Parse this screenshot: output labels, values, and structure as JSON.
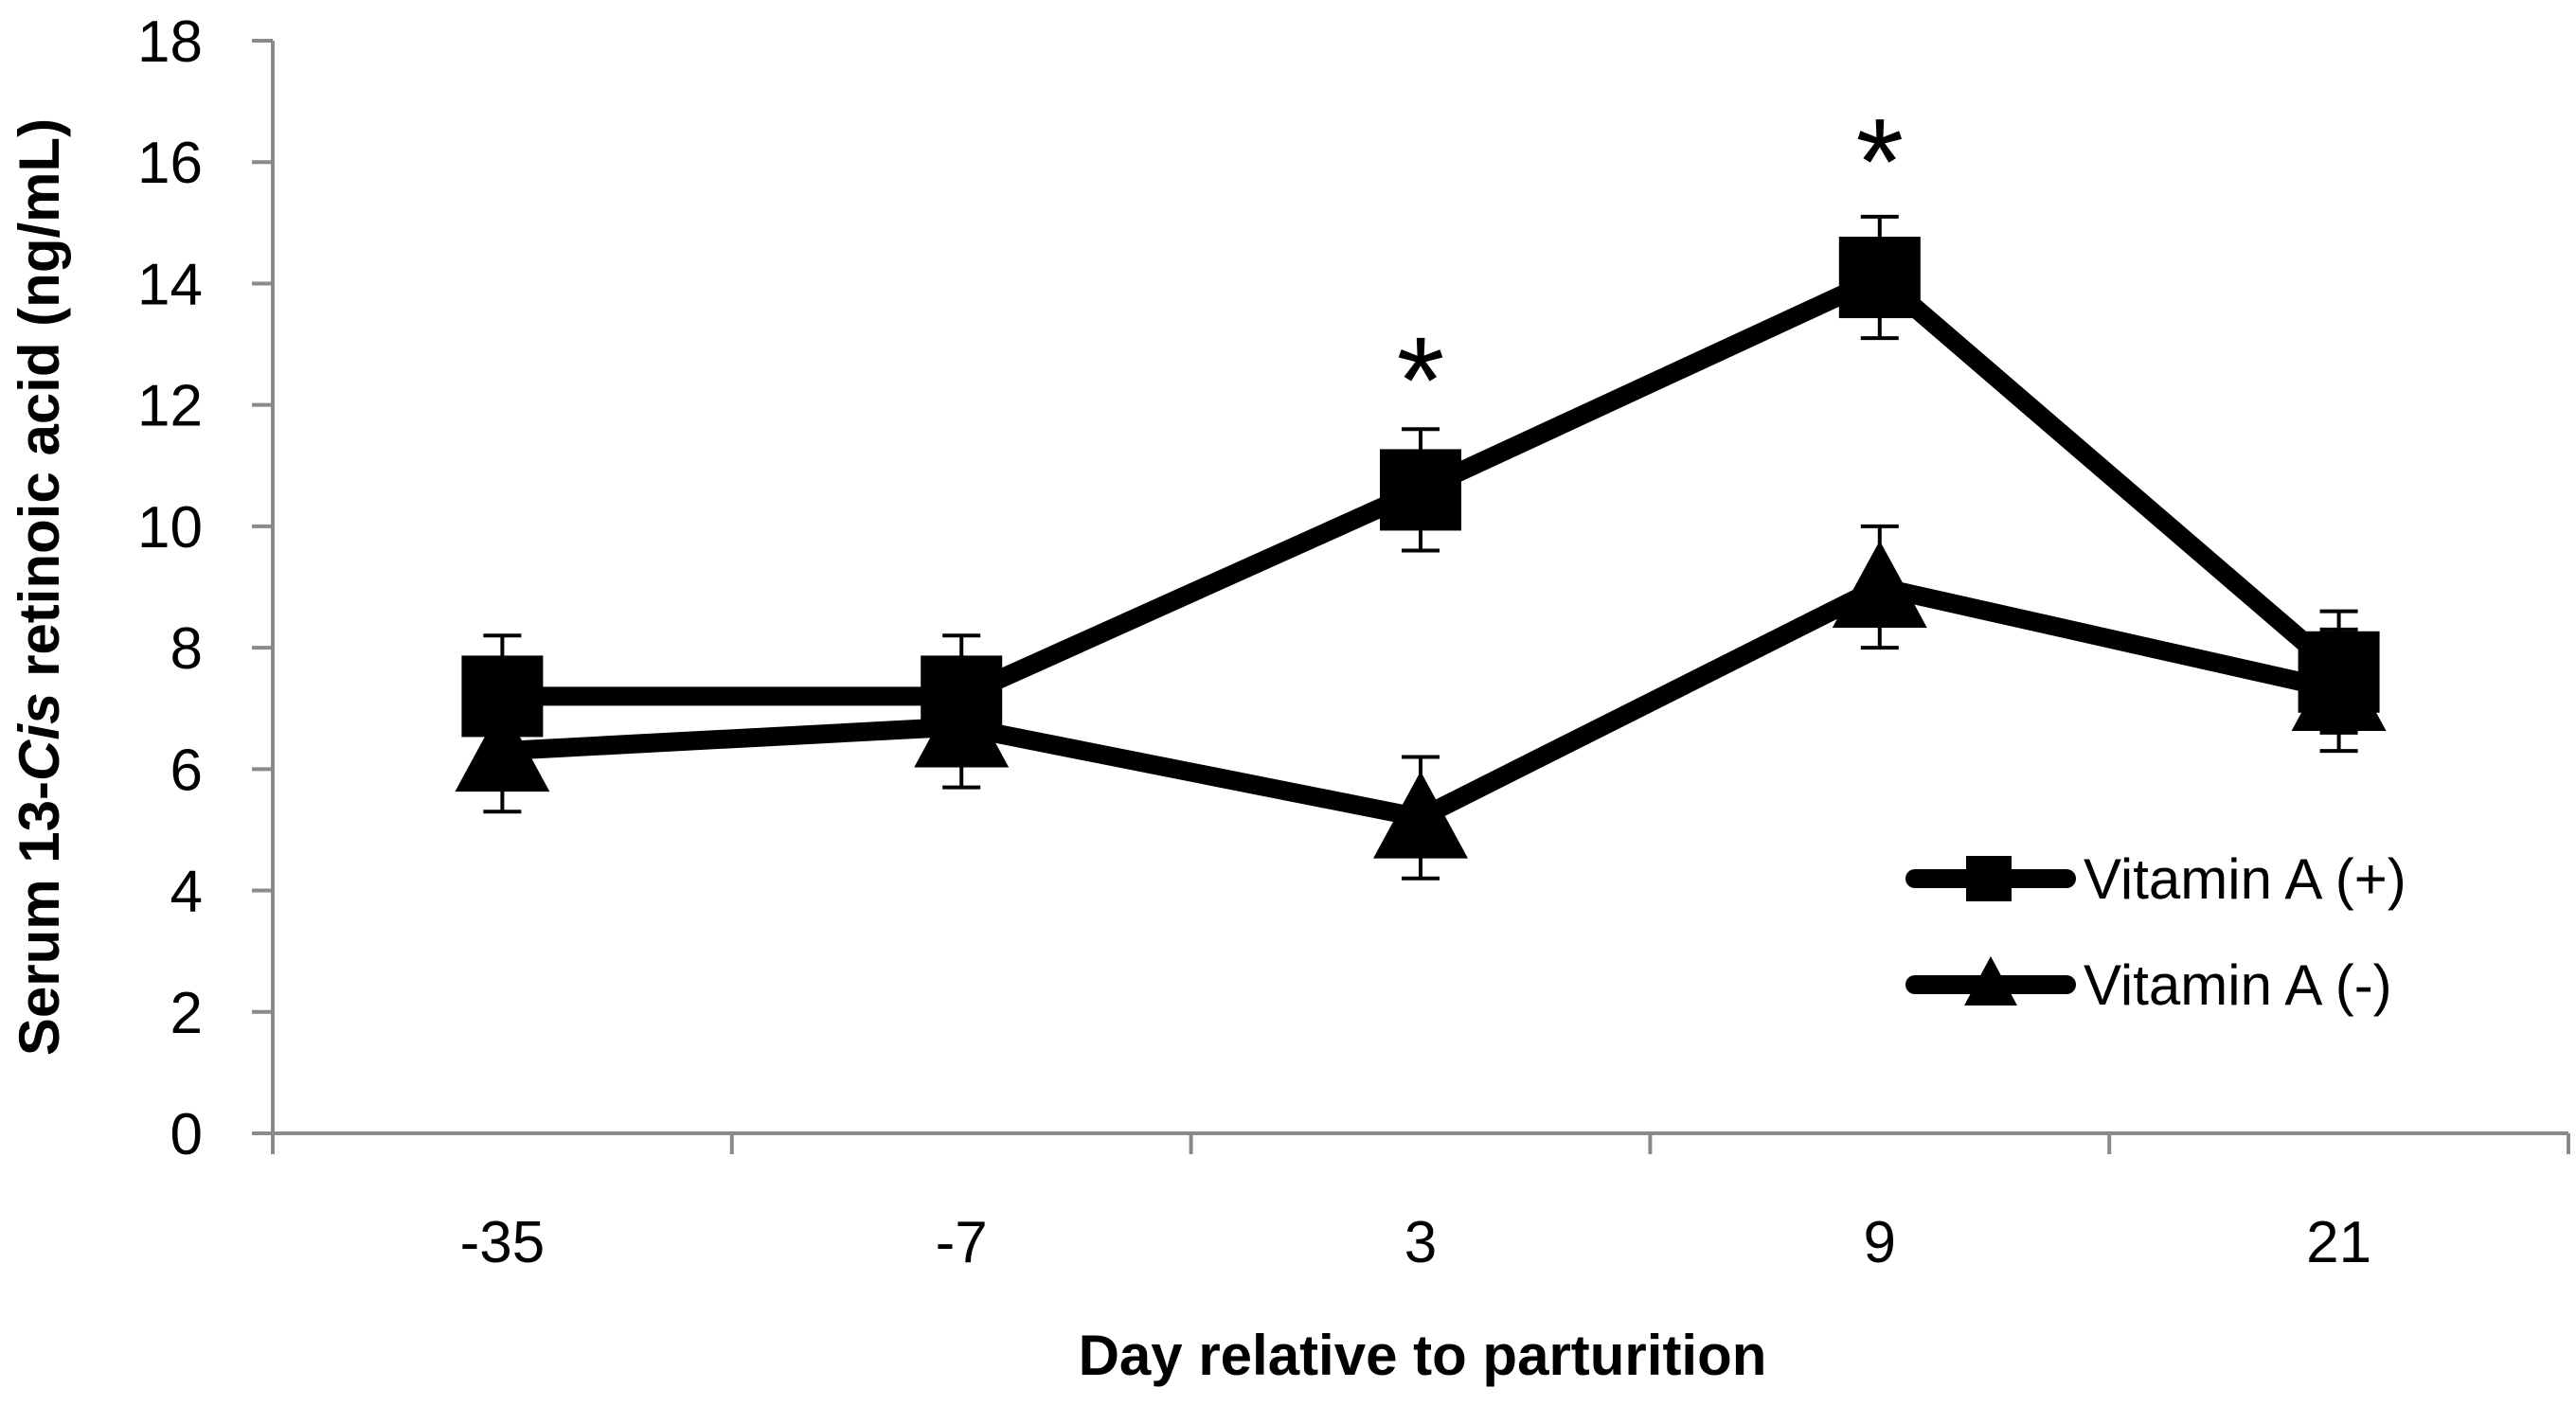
{
  "chart_data": {
    "type": "line",
    "categories": [
      "-35",
      "-7",
      "3",
      "9",
      "21"
    ],
    "xlabel": "Day relative to parturition",
    "ylabel": {
      "prefix": "Serum  13-",
      "italic": "Cis",
      "suffix": " retinoic acid (ng/mL)"
    },
    "ylim": [
      0,
      18
    ],
    "yticks": [
      0,
      2,
      4,
      6,
      8,
      10,
      12,
      14,
      16,
      18
    ],
    "grid": false,
    "legend_position": "right",
    "series": [
      {
        "name": "Vitamin A (+)",
        "marker": "square",
        "values": [
          7.2,
          7.2,
          10.6,
          14.1,
          7.6
        ],
        "errors": [
          1.0,
          1.0,
          1.0,
          1.0,
          1.0
        ]
      },
      {
        "name": "Vitamin A (-)",
        "marker": "triangle",
        "values": [
          6.3,
          6.7,
          5.2,
          9.0,
          7.3
        ],
        "errors": [
          1.0,
          1.0,
          1.0,
          1.0,
          1.0
        ]
      }
    ],
    "annotations": [
      {
        "text": "*",
        "category": "3",
        "y": 12.8
      },
      {
        "text": "*",
        "category": "9",
        "y": 16.4
      }
    ]
  }
}
